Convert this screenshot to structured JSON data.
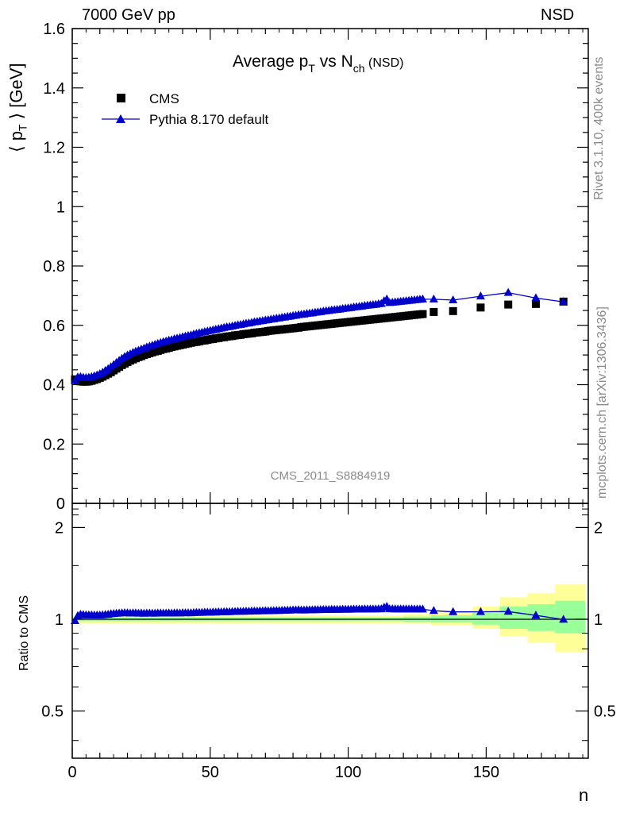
{
  "header": {
    "energy_label": "7000 GeV pp",
    "process_label": "NSD"
  },
  "side_labels": {
    "rivet": "Rivet 3.1.10,  400k events",
    "mcplots": "mcplots.cern.ch [arXiv:1306.3436]"
  },
  "title": {
    "main": "Average p",
    "sub_t": "T",
    "vs": " vs N",
    "sub_ch": "ch",
    "tag": " (NSD)"
  },
  "analysis_id": "CMS_2011_S8884919",
  "xaxis": {
    "label": "n",
    "ticks": [
      "0",
      "50",
      "100",
      "150"
    ]
  },
  "top_yaxis": {
    "label_pre": "⟨ p",
    "label_sub": "T",
    "label_post": " ⟩ [GeV]",
    "ticks": [
      "0",
      "0.2",
      "0.4",
      "0.6",
      "0.8",
      "1",
      "1.2",
      "1.4",
      "1.6"
    ]
  },
  "ratio_yaxis": {
    "label": "Ratio to CMS",
    "ticks": [
      "0.5",
      "1",
      "2"
    ]
  },
  "legend": {
    "data_label": "CMS",
    "mc_label": "Pythia 8.170 default"
  },
  "colors": {
    "data": "#000000",
    "mc": "#0000cc",
    "band_inner": "#99ff99",
    "band_outer": "#ffff99"
  },
  "chart_data": {
    "type": "scatter",
    "xlabel": "n",
    "xlim": [
      0,
      187
    ],
    "top": {
      "ylabel": "⟨ pT ⟩ [GeV]",
      "ylim": [
        0,
        1.6
      ],
      "data": {
        "name": "CMS",
        "x": [
          1,
          2,
          3,
          4,
          5,
          6,
          7,
          8,
          9,
          10,
          11,
          12,
          13,
          14,
          15,
          16,
          17,
          18,
          19,
          20,
          21,
          22,
          23,
          24,
          25,
          26,
          27,
          28,
          29,
          30,
          31,
          32,
          33,
          34,
          35,
          36,
          37,
          38,
          39,
          40,
          41,
          42,
          43,
          44,
          45,
          46,
          47,
          48,
          49,
          50,
          51,
          52,
          53,
          54,
          55,
          56,
          57,
          58,
          59,
          60,
          61,
          62,
          63,
          64,
          65,
          66,
          67,
          68,
          69,
          70,
          71,
          72,
          73,
          74,
          75,
          76,
          77,
          78,
          79,
          80,
          81,
          82,
          83,
          84,
          85,
          86,
          87,
          88,
          89,
          90,
          91,
          92,
          93,
          94,
          95,
          96,
          97,
          98,
          99,
          100,
          101,
          102,
          103,
          104,
          105,
          106,
          107,
          108,
          109,
          110,
          111,
          112,
          113,
          114,
          115,
          116,
          117,
          118,
          119,
          120,
          121,
          122,
          123,
          124,
          125,
          126,
          127,
          131,
          138,
          148,
          158,
          168,
          178
        ],
        "y": [
          0.418,
          0.414,
          0.411,
          0.41,
          0.41,
          0.411,
          0.413,
          0.416,
          0.419,
          0.423,
          0.427,
          0.432,
          0.437,
          0.442,
          0.448,
          0.454,
          0.46,
          0.466,
          0.471,
          0.476,
          0.481,
          0.485,
          0.489,
          0.493,
          0.496,
          0.5,
          0.503,
          0.506,
          0.509,
          0.512,
          0.514,
          0.517,
          0.52,
          0.522,
          0.524,
          0.527,
          0.529,
          0.531,
          0.533,
          0.535,
          0.537,
          0.539,
          0.541,
          0.543,
          0.544,
          0.546,
          0.548,
          0.549,
          0.551,
          0.553,
          0.554,
          0.556,
          0.557,
          0.559,
          0.56,
          0.562,
          0.563,
          0.564,
          0.566,
          0.567,
          0.568,
          0.57,
          0.571,
          0.572,
          0.573,
          0.575,
          0.576,
          0.577,
          0.578,
          0.579,
          0.581,
          0.582,
          0.583,
          0.584,
          0.585,
          0.586,
          0.587,
          0.588,
          0.589,
          0.59,
          0.591,
          0.592,
          0.594,
          0.595,
          0.596,
          0.597,
          0.598,
          0.599,
          0.6,
          0.601,
          0.602,
          0.603,
          0.604,
          0.605,
          0.606,
          0.607,
          0.608,
          0.609,
          0.61,
          0.611,
          0.612,
          0.613,
          0.614,
          0.615,
          0.616,
          0.617,
          0.618,
          0.619,
          0.62,
          0.621,
          0.622,
          0.623,
          0.624,
          0.625,
          0.626,
          0.627,
          0.628,
          0.629,
          0.63,
          0.631,
          0.632,
          0.633,
          0.634,
          0.635,
          0.636,
          0.637,
          0.638,
          0.645,
          0.648,
          0.66,
          0.67,
          0.672,
          0.68
        ]
      },
      "mc": {
        "name": "Pythia 8.170 default",
        "x": [
          1,
          2,
          3,
          4,
          5,
          6,
          7,
          8,
          9,
          10,
          11,
          12,
          13,
          14,
          15,
          16,
          17,
          18,
          19,
          20,
          21,
          22,
          23,
          24,
          25,
          26,
          27,
          28,
          29,
          30,
          31,
          32,
          33,
          34,
          35,
          36,
          37,
          38,
          39,
          40,
          41,
          42,
          43,
          44,
          45,
          46,
          47,
          48,
          49,
          50,
          51,
          52,
          53,
          54,
          55,
          56,
          57,
          58,
          59,
          60,
          61,
          62,
          63,
          64,
          65,
          66,
          67,
          68,
          69,
          70,
          71,
          72,
          73,
          74,
          75,
          76,
          77,
          78,
          79,
          80,
          81,
          82,
          83,
          84,
          85,
          86,
          87,
          88,
          89,
          90,
          91,
          92,
          93,
          94,
          95,
          96,
          97,
          98,
          99,
          100,
          101,
          102,
          103,
          104,
          105,
          106,
          107,
          108,
          109,
          110,
          111,
          112,
          113,
          114,
          115,
          116,
          117,
          118,
          119,
          120,
          121,
          122,
          123,
          124,
          125,
          126,
          127,
          131,
          138,
          148,
          158,
          168,
          178
        ],
        "y": [
          0.413,
          0.425,
          0.426,
          0.424,
          0.423,
          0.424,
          0.426,
          0.429,
          0.432,
          0.436,
          0.441,
          0.447,
          0.453,
          0.46,
          0.467,
          0.474,
          0.481,
          0.488,
          0.494,
          0.499,
          0.503,
          0.508,
          0.512,
          0.515,
          0.519,
          0.522,
          0.526,
          0.529,
          0.532,
          0.535,
          0.538,
          0.541,
          0.544,
          0.546,
          0.549,
          0.551,
          0.554,
          0.556,
          0.558,
          0.561,
          0.563,
          0.565,
          0.567,
          0.57,
          0.572,
          0.574,
          0.576,
          0.578,
          0.58,
          0.582,
          0.584,
          0.586,
          0.588,
          0.59,
          0.592,
          0.594,
          0.595,
          0.597,
          0.599,
          0.601,
          0.602,
          0.604,
          0.606,
          0.607,
          0.609,
          0.611,
          0.612,
          0.614,
          0.615,
          0.617,
          0.618,
          0.62,
          0.621,
          0.623,
          0.624,
          0.626,
          0.627,
          0.629,
          0.63,
          0.632,
          0.633,
          0.635,
          0.636,
          0.637,
          0.639,
          0.64,
          0.641,
          0.643,
          0.644,
          0.645,
          0.647,
          0.648,
          0.649,
          0.651,
          0.652,
          0.653,
          0.654,
          0.656,
          0.657,
          0.658,
          0.659,
          0.661,
          0.662,
          0.663,
          0.664,
          0.666,
          0.667,
          0.668,
          0.669,
          0.67,
          0.672,
          0.673,
          0.682,
          0.688,
          0.676,
          0.677,
          0.678,
          0.679,
          0.68,
          0.681,
          0.682,
          0.683,
          0.684,
          0.685,
          0.686,
          0.687,
          0.688,
          0.688,
          0.685,
          0.698,
          0.71,
          0.692,
          0.679
        ]
      }
    },
    "ratio": {
      "ylabel": "Ratio to CMS",
      "yscale": "log",
      "ylim": [
        0.35,
        2.4
      ],
      "yticks": [
        0.5,
        1,
        2
      ],
      "reference": 1,
      "bands_x": [
        0,
        5,
        10,
        20,
        30,
        40,
        50,
        60,
        70,
        80,
        90,
        100,
        110,
        120,
        130,
        145,
        155,
        165,
        175,
        186
      ],
      "inner_low": [
        0.985,
        0.985,
        0.985,
        0.985,
        0.985,
        0.985,
        0.985,
        0.985,
        0.985,
        0.985,
        0.985,
        0.985,
        0.985,
        0.98,
        0.975,
        0.96,
        0.93,
        0.915,
        0.9
      ],
      "inner_high": [
        1.015,
        1.015,
        1.015,
        1.015,
        1.015,
        1.015,
        1.015,
        1.015,
        1.015,
        1.015,
        1.015,
        1.015,
        1.015,
        1.02,
        1.03,
        1.05,
        1.1,
        1.12,
        1.15
      ],
      "outer_low": [
        0.97,
        0.97,
        0.97,
        0.97,
        0.97,
        0.97,
        0.97,
        0.97,
        0.97,
        0.97,
        0.97,
        0.97,
        0.97,
        0.965,
        0.955,
        0.93,
        0.88,
        0.84,
        0.78
      ],
      "outer_high": [
        1.03,
        1.03,
        1.03,
        1.03,
        1.03,
        1.03,
        1.03,
        1.03,
        1.03,
        1.03,
        1.03,
        1.03,
        1.03,
        1.04,
        1.06,
        1.1,
        1.18,
        1.22,
        1.3
      ]
    }
  }
}
